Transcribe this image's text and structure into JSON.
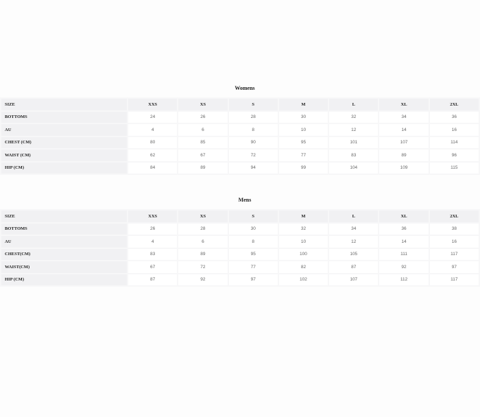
{
  "sizes": [
    "XXS",
    "XS",
    "S",
    "M",
    "L",
    "XL",
    "2XL"
  ],
  "tables": [
    {
      "title": "Womens",
      "header_label": "SIZE",
      "rows": [
        {
          "label": "BOTTOMS",
          "values": [
            "24",
            "26",
            "28",
            "30",
            "32",
            "34",
            "36"
          ]
        },
        {
          "label": "AU",
          "values": [
            "4",
            "6",
            "8",
            "10",
            "12",
            "14",
            "16"
          ]
        },
        {
          "label": "CHEST (CM)",
          "values": [
            "80",
            "85",
            "90",
            "95",
            "101",
            "107",
            "114"
          ]
        },
        {
          "label": "WAIST (CM)",
          "values": [
            "62",
            "67",
            "72",
            "77",
            "83",
            "89",
            "96"
          ]
        },
        {
          "label": "HIP (CM)",
          "values": [
            "84",
            "89",
            "94",
            "99",
            "104",
            "109",
            "115"
          ]
        }
      ]
    },
    {
      "title": "Mens",
      "header_label": "SIZE",
      "rows": [
        {
          "label": "BOTTOMS",
          "values": [
            "26",
            "28",
            "30",
            "32",
            "34",
            "36",
            "38"
          ]
        },
        {
          "label": "AU",
          "values": [
            "4",
            "6",
            "8",
            "10",
            "12",
            "14",
            "16"
          ]
        },
        {
          "label": "CHEST(CM)",
          "values": [
            "83",
            "89",
            "95",
            "100",
            "105",
            "111",
            "117"
          ]
        },
        {
          "label": "WAIST(CM)",
          "values": [
            "67",
            "72",
            "77",
            "82",
            "87",
            "92",
            "97"
          ]
        },
        {
          "label": "HIP (CM)",
          "values": [
            "87",
            "92",
            "97",
            "102",
            "107",
            "112",
            "117"
          ]
        }
      ]
    }
  ]
}
